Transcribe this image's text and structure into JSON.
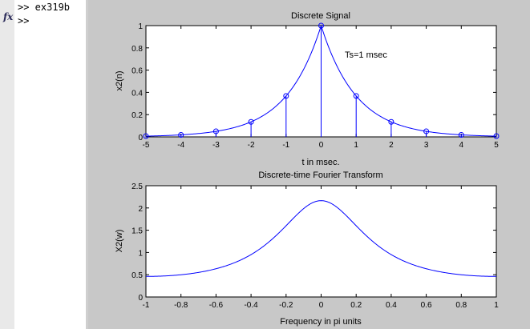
{
  "command_window": {
    "line1": ">> ex319b",
    "prompt": ">>",
    "fx_icon": "fx"
  },
  "chart_data": [
    {
      "type": "stem",
      "title": "Discrete Signal",
      "xlabel": "t in msec.",
      "ylabel": "x2(n)",
      "annotation": "Ts=1 msec",
      "xlim": [
        -5,
        5
      ],
      "ylim": [
        0,
        1
      ],
      "xticks": [
        "-5",
        "-4",
        "-3",
        "-2",
        "-1",
        "0",
        "1",
        "2",
        "3",
        "4",
        "5"
      ],
      "yticks": [
        "0",
        "0.2",
        "0.4",
        "0.6",
        "0.8",
        "1"
      ],
      "x": [
        -5,
        -4,
        -3,
        -2,
        -1,
        0,
        1,
        2,
        3,
        4,
        5
      ],
      "values": [
        0.007,
        0.018,
        0.05,
        0.135,
        0.368,
        1,
        0.368,
        0.135,
        0.05,
        0.018,
        0.007
      ],
      "envelope": "exp(-|t|)"
    },
    {
      "type": "line",
      "title": "Discrete-time Fourier Transform",
      "xlabel": "Frequency in pi units",
      "ylabel": "X2(w)",
      "xlim": [
        -1,
        1
      ],
      "ylim": [
        0,
        2.5
      ],
      "xticks": [
        "-1",
        "-0.8",
        "-0.6",
        "-0.4",
        "-0.2",
        "0",
        "0.2",
        "0.4",
        "0.6",
        "0.8",
        "1"
      ],
      "yticks": [
        "0",
        "0.5",
        "1",
        "1.5",
        "2",
        "2.5"
      ],
      "formula": "(1-e^-2)/(1-2e^-1 cos(pi w)+e^-2)"
    }
  ],
  "colors": {
    "line": "#0000ff",
    "figure_bg": "#c8c8c8",
    "axes_bg": "#ffffff"
  }
}
